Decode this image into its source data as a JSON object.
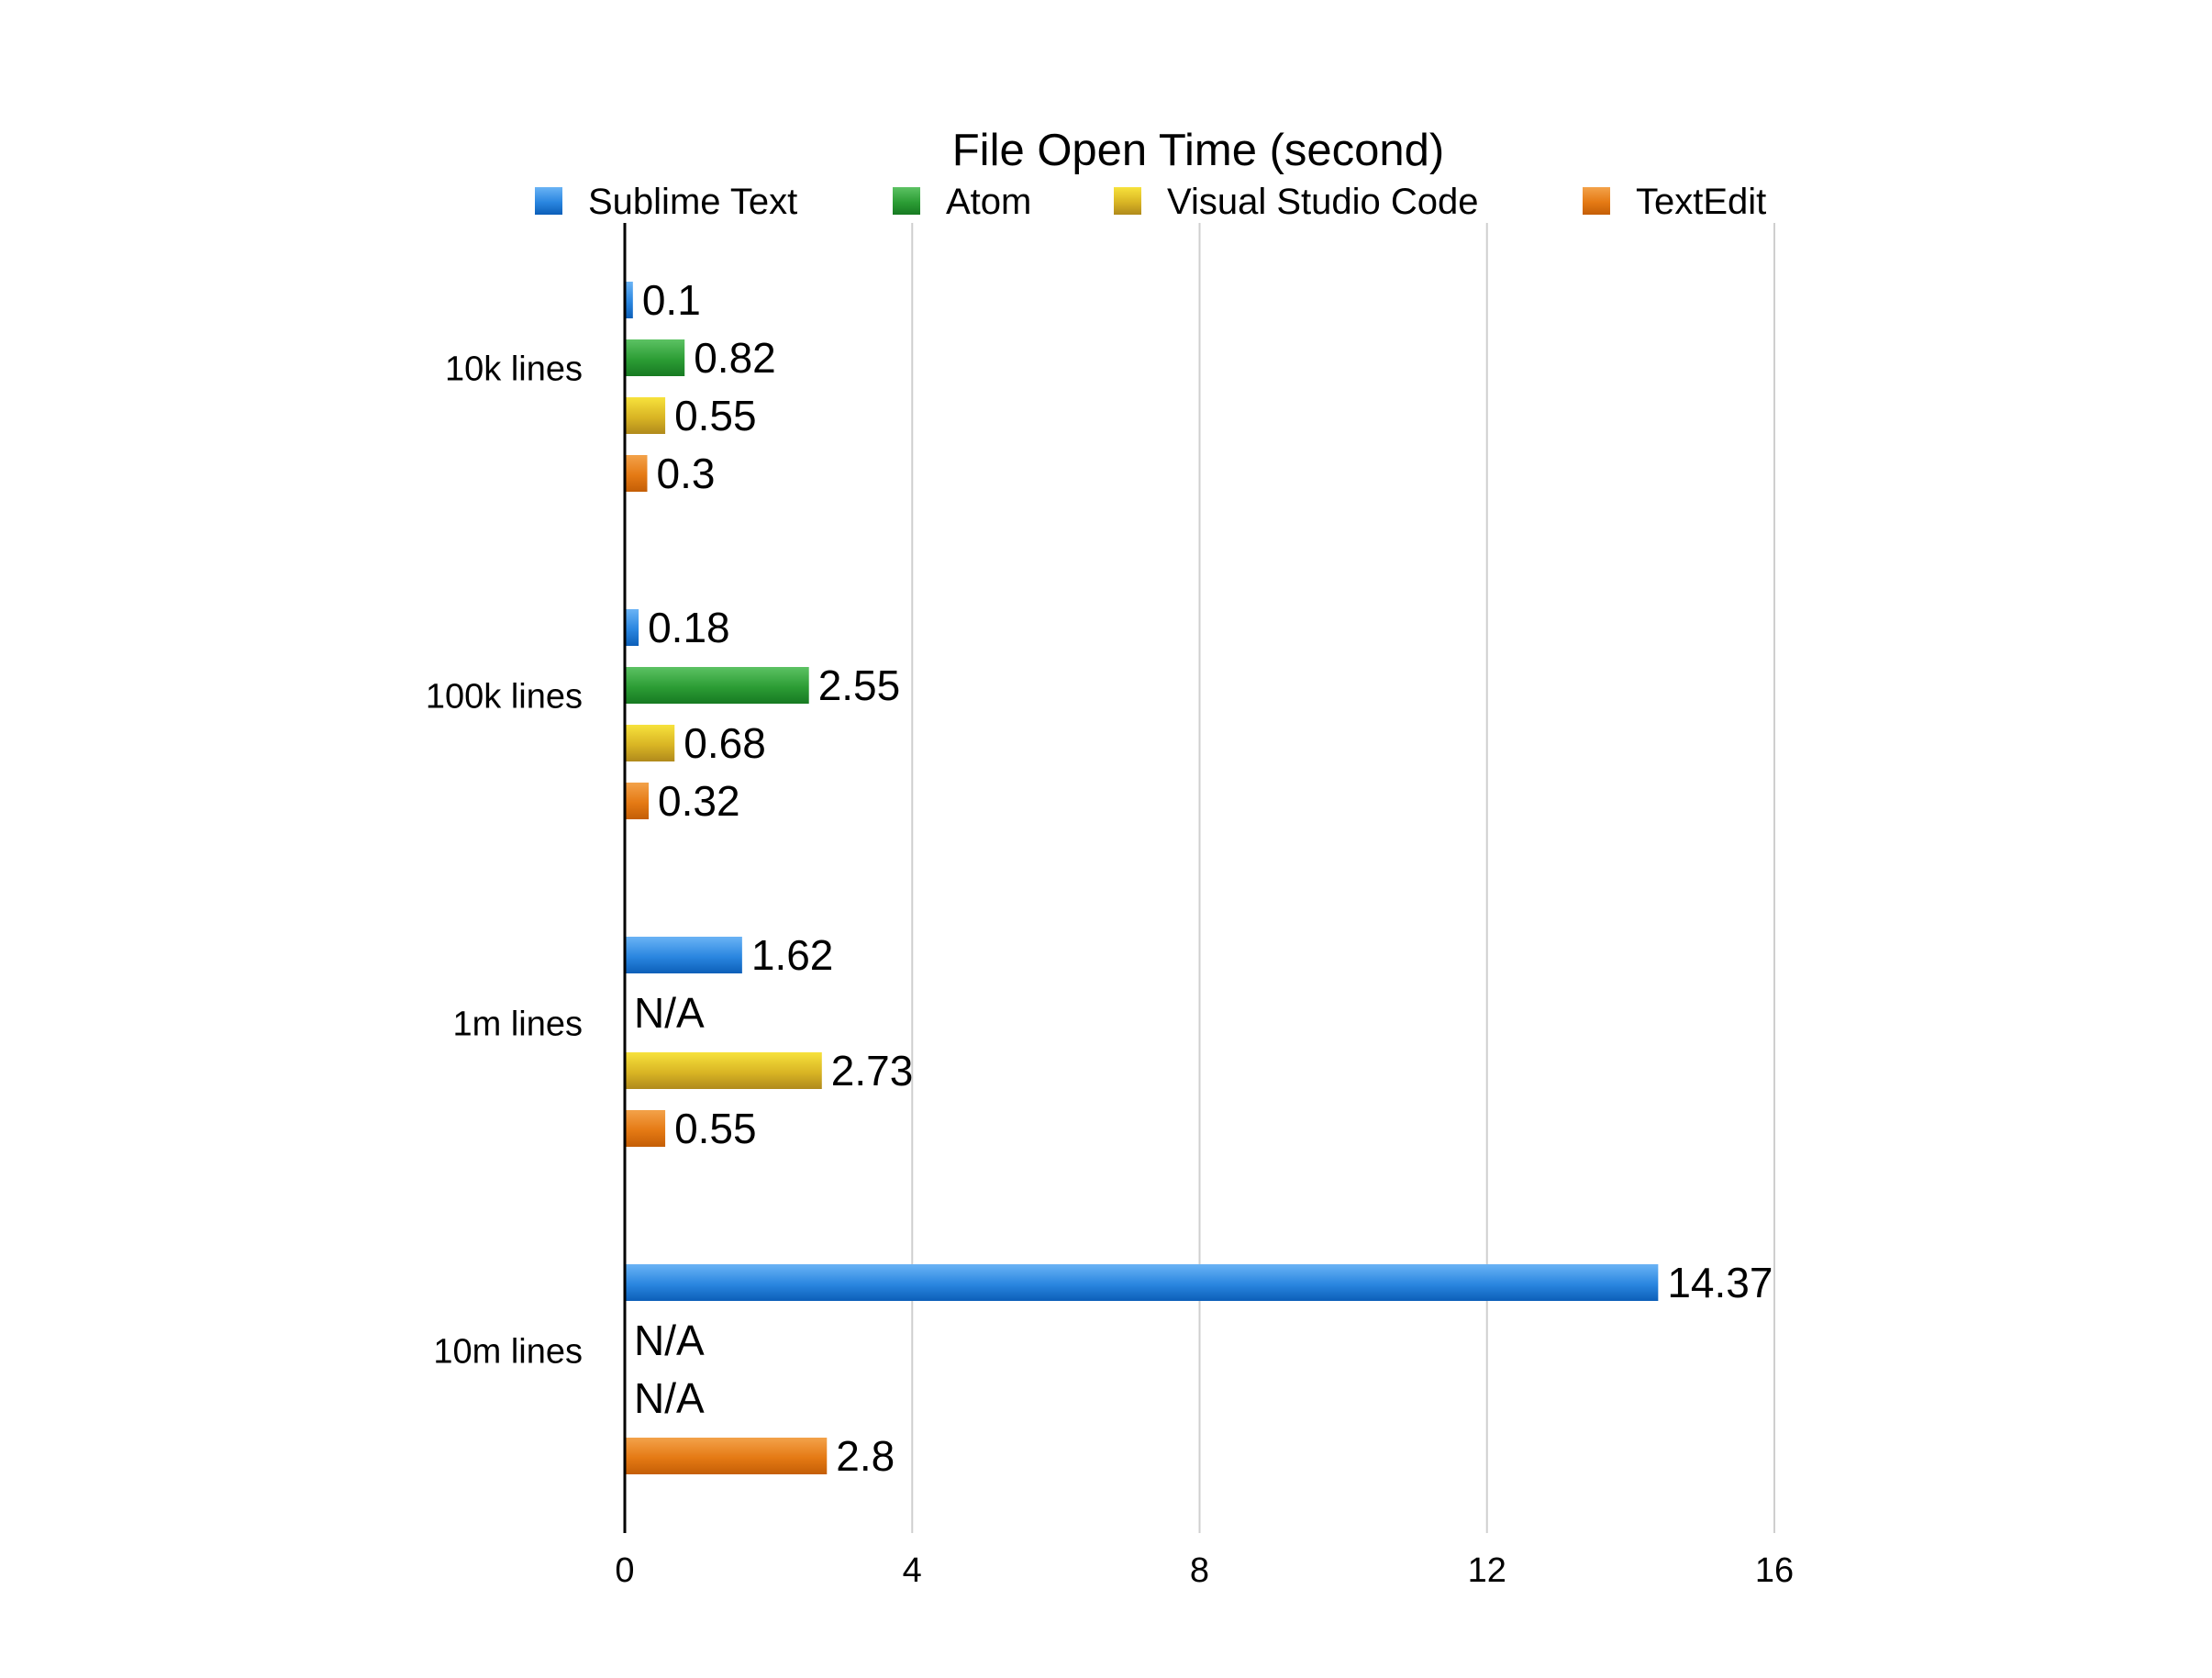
{
  "chart_data": {
    "type": "bar",
    "orientation": "horizontal",
    "title": "File Open Time (second)",
    "xlabel": "",
    "ylabel": "",
    "categories": [
      "10k lines",
      "100k lines",
      "1m lines",
      "10m lines"
    ],
    "series": [
      {
        "name": "Sublime Text",
        "values": [
          0.1,
          0.18,
          1.62,
          14.37
        ],
        "labels": [
          "0.1",
          "0.18",
          "1.62",
          "14.37"
        ],
        "color": "#2a86e0",
        "color_light": "#6ab3f5",
        "color_dark": "#0c5fb8"
      },
      {
        "name": "Atom",
        "values": [
          0.82,
          2.55,
          null,
          null
        ],
        "labels": [
          "0.82",
          "2.55",
          "N/A",
          "N/A"
        ],
        "color": "#2c9d35",
        "color_light": "#5cc263",
        "color_dark": "#177a22"
      },
      {
        "name": "Visual Studio Code",
        "values": [
          0.55,
          0.68,
          2.73,
          null
        ],
        "labels": [
          "0.55",
          "0.68",
          "2.73",
          "N/A"
        ],
        "color": "#d9b524",
        "color_light": "#f7e23c",
        "color_dark": "#b08a1c"
      },
      {
        "name": "TextEdit",
        "values": [
          0.3,
          0.32,
          0.55,
          2.8
        ],
        "labels": [
          "0.3",
          "0.32",
          "0.55",
          "2.8"
        ],
        "color": "#e57a14",
        "color_light": "#f3a24a",
        "color_dark": "#c45e06"
      }
    ],
    "xlim": [
      0,
      16
    ],
    "xticks": [
      0,
      4,
      8,
      12,
      16
    ],
    "xtick_labels": [
      "0",
      "4",
      "8",
      "12",
      "16"
    ],
    "grid": "vertical",
    "legend": "top"
  }
}
